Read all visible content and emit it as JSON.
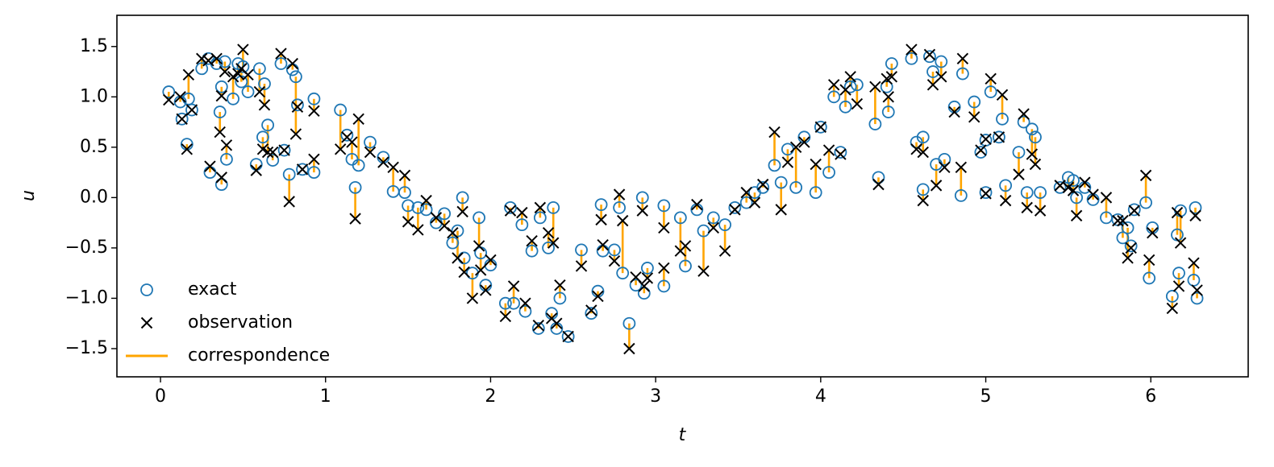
{
  "chart_data": {
    "type": "scatter",
    "xlabel": "t",
    "ylabel": "u",
    "xlim": [
      -0.264,
      6.59
    ],
    "ylim": [
      -1.78,
      1.81
    ],
    "xticks": [
      0,
      1,
      2,
      3,
      4,
      5,
      6
    ],
    "yticks": [
      {
        "value": -1.5,
        "label": "−1.5"
      },
      {
        "value": -1,
        "label": "−1.0"
      },
      {
        "value": -0.5,
        "label": "−0.5"
      },
      {
        "value": 0,
        "label": "0.0"
      },
      0.5,
      {
        "value": 1,
        "label": "1.0"
      },
      1.5
    ],
    "legend": "lower left",
    "x": [
      0.05,
      0.12,
      0.13,
      0.16,
      0.17,
      0.19,
      0.25,
      0.29,
      0.3,
      0.34,
      0.36,
      0.37,
      0.37,
      0.39,
      0.4,
      0.44,
      0.47,
      0.49,
      0.5,
      0.53,
      0.58,
      0.6,
      0.62,
      0.63,
      0.65,
      0.68,
      0.73,
      0.75,
      0.78,
      0.8,
      0.82,
      0.83,
      0.86,
      0.93,
      0.93,
      1.09,
      1.13,
      1.16,
      1.18,
      1.2,
      1.27,
      1.35,
      1.41,
      1.48,
      1.5,
      1.56,
      1.61,
      1.67,
      1.72,
      1.77,
      1.8,
      1.83,
      1.84,
      1.89,
      1.93,
      1.94,
      1.97,
      2.0,
      2.09,
      2.12,
      2.14,
      2.19,
      2.21,
      2.25,
      2.29,
      2.3,
      2.35,
      2.37,
      2.38,
      2.4,
      2.42,
      2.47,
      2.55,
      2.61,
      2.65,
      2.67,
      2.68,
      2.75,
      2.78,
      2.8,
      2.84,
      2.88,
      2.92,
      2.93,
      2.95,
      3.05,
      3.05,
      3.15,
      3.18,
      3.25,
      3.29,
      3.35,
      3.42,
      3.48,
      3.55,
      3.6,
      3.65,
      3.72,
      3.76,
      3.8,
      3.85,
      3.9,
      3.97,
      4.0,
      4.05,
      4.08,
      4.12,
      4.15,
      4.18,
      4.22,
      4.33,
      4.35,
      4.4,
      4.41,
      4.43,
      4.55,
      4.58,
      4.62,
      4.62,
      4.66,
      4.68,
      4.7,
      4.73,
      4.75,
      4.81,
      4.85,
      4.86,
      4.93,
      4.97,
      5.0,
      5.0,
      5.03,
      5.08,
      5.1,
      5.12,
      5.2,
      5.23,
      5.25,
      5.28,
      5.3,
      5.33,
      5.45,
      5.5,
      5.53,
      5.55,
      5.6,
      5.65,
      5.73,
      5.8,
      5.83,
      5.86,
      5.88,
      5.9,
      5.97,
      5.99,
      6.01,
      6.13,
      6.16,
      6.17,
      6.18,
      6.27,
      6.28,
      6.26
    ],
    "series": [
      {
        "name": "exact",
        "color": "#1f77b4",
        "marker": "circle",
        "values": [
          1.05,
          0.95,
          0.78,
          0.53,
          0.98,
          0.87,
          1.28,
          1.38,
          0.25,
          1.33,
          0.85,
          0.13,
          1.1,
          1.35,
          0.38,
          0.98,
          1.33,
          1.15,
          1.3,
          1.05,
          0.33,
          1.28,
          0.6,
          1.13,
          0.72,
          0.37,
          1.33,
          0.47,
          0.23,
          1.27,
          1.2,
          0.92,
          0.28,
          0.98,
          0.25,
          0.87,
          0.62,
          0.38,
          0.1,
          0.32,
          0.55,
          0.4,
          0.06,
          0.05,
          -0.08,
          -0.1,
          -0.12,
          -0.25,
          -0.16,
          -0.45,
          -0.33,
          0.0,
          -0.6,
          -0.75,
          -0.2,
          -0.55,
          -0.87,
          -0.67,
          -1.05,
          -0.1,
          -1.05,
          -0.27,
          -1.13,
          -0.53,
          -1.3,
          -0.2,
          -0.5,
          -1.15,
          -0.1,
          -1.3,
          -1.0,
          -1.38,
          -0.52,
          -1.15,
          -0.93,
          -0.07,
          -0.53,
          -0.52,
          -0.1,
          -0.75,
          -1.25,
          -0.87,
          0.0,
          -0.95,
          -0.7,
          -0.88,
          -0.08,
          -0.2,
          -0.68,
          -0.12,
          -0.33,
          -0.2,
          -0.27,
          -0.1,
          -0.05,
          0.05,
          0.1,
          0.32,
          0.15,
          0.48,
          0.1,
          0.6,
          0.05,
          0.7,
          0.25,
          1.0,
          0.45,
          0.9,
          1.1,
          1.12,
          0.73,
          0.2,
          1.1,
          0.85,
          1.33,
          1.38,
          0.55,
          0.6,
          0.08,
          1.4,
          1.25,
          0.33,
          1.35,
          0.38,
          0.9,
          0.02,
          1.23,
          0.95,
          0.45,
          0.57,
          0.05,
          1.05,
          0.6,
          0.78,
          0.12,
          0.45,
          0.75,
          0.05,
          0.68,
          0.6,
          0.05,
          0.1,
          0.2,
          0.17,
          0.0,
          0.1,
          -0.02,
          -0.2,
          -0.22,
          -0.4,
          -0.3,
          -0.48,
          -0.12,
          -0.05,
          -0.8,
          -0.3,
          -0.98,
          -0.37,
          -0.75,
          -0.13,
          -0.1,
          -1.0,
          -0.82
        ]
      },
      {
        "name": "observation",
        "color": "#000000",
        "marker": "x",
        "values": [
          0.97,
          1.0,
          0.78,
          0.48,
          1.22,
          0.87,
          1.38,
          1.36,
          0.31,
          1.38,
          0.65,
          0.2,
          1.01,
          1.25,
          0.52,
          1.2,
          1.23,
          1.28,
          1.47,
          1.22,
          0.27,
          1.05,
          0.48,
          0.92,
          0.45,
          0.45,
          1.43,
          0.47,
          -0.04,
          1.33,
          0.63,
          0.9,
          0.28,
          0.86,
          0.38,
          0.48,
          0.6,
          0.55,
          -0.21,
          0.78,
          0.45,
          0.35,
          0.3,
          0.22,
          -0.24,
          -0.32,
          -0.03,
          -0.2,
          -0.28,
          -0.35,
          -0.6,
          -0.14,
          -0.74,
          -1.0,
          -0.48,
          -0.72,
          -0.92,
          -0.62,
          -1.18,
          -0.13,
          -0.88,
          -0.15,
          -1.05,
          -0.43,
          -1.27,
          -0.1,
          -0.35,
          -1.2,
          -0.45,
          -1.25,
          -0.87,
          -1.38,
          -0.68,
          -1.12,
          -0.98,
          -0.22,
          -0.47,
          -0.63,
          0.03,
          -0.23,
          -1.5,
          -0.79,
          -0.13,
          -0.88,
          -0.8,
          -0.7,
          -0.3,
          -0.53,
          -0.48,
          -0.07,
          -0.73,
          -0.3,
          -0.53,
          -0.12,
          0.05,
          -0.05,
          0.13,
          0.65,
          -0.12,
          0.35,
          0.5,
          0.55,
          0.33,
          0.7,
          0.47,
          1.12,
          0.43,
          1.07,
          1.2,
          0.93,
          1.1,
          0.13,
          1.18,
          1.0,
          1.2,
          1.47,
          0.48,
          0.45,
          -0.03,
          1.42,
          1.12,
          0.12,
          1.2,
          0.3,
          0.85,
          0.3,
          1.38,
          0.8,
          0.47,
          0.58,
          0.04,
          1.18,
          0.6,
          1.02,
          -0.03,
          0.23,
          0.83,
          -0.1,
          0.43,
          0.33,
          -0.13,
          0.12,
          0.1,
          0.07,
          -0.18,
          0.15,
          0.03,
          0.0,
          -0.23,
          -0.23,
          -0.6,
          -0.5,
          -0.13,
          0.22,
          -0.62,
          -0.35,
          -1.1,
          -0.15,
          -0.88,
          -0.45,
          -0.18,
          -0.92,
          -0.65
        ]
      },
      {
        "name": "correspondence",
        "color": "#ffa500",
        "marker": "line"
      }
    ]
  }
}
